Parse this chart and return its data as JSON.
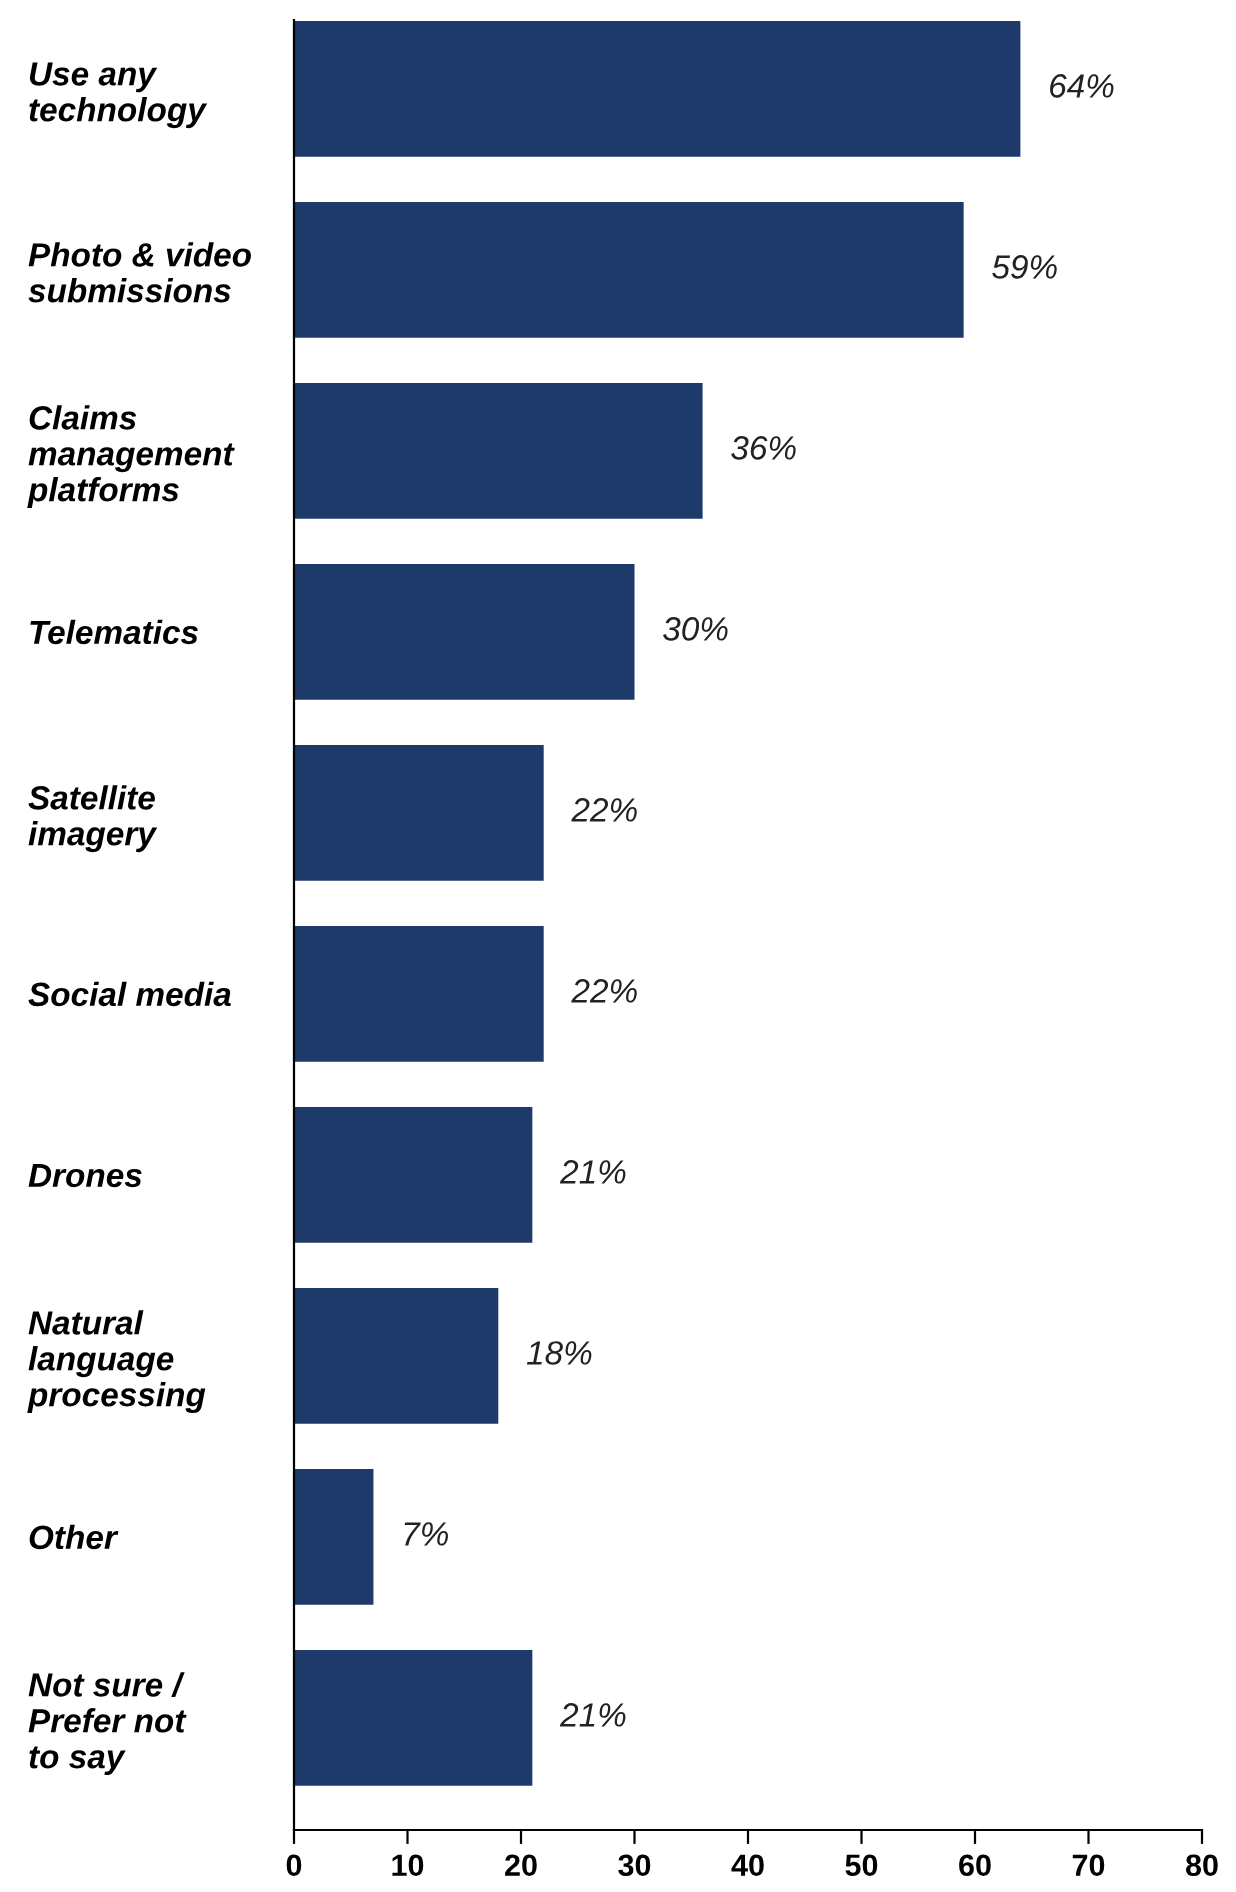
{
  "chart_data": {
    "type": "bar",
    "orientation": "horizontal",
    "categories": [
      "Use any\ntechnology",
      "Photo & video\nsubmissions",
      "Claims\nmanagement\nplatforms",
      "Telematics",
      "Satellite\nimagery",
      "Social media",
      "Drones",
      "Natural\nlanguage\nprocessing",
      "Other",
      "Not sure /\nPrefer not\nto say"
    ],
    "values": [
      64,
      59,
      36,
      30,
      22,
      22,
      21,
      18,
      7,
      21
    ],
    "value_labels": [
      "64%",
      "59%",
      "36%",
      "30%",
      "22%",
      "22%",
      "21%",
      "18%",
      "7%",
      "21%"
    ],
    "color": "#1e3a6a",
    "xlim": [
      0,
      80
    ],
    "xticks": [
      0,
      10,
      20,
      30,
      40,
      50,
      60,
      70,
      80
    ],
    "grid": false,
    "legend": false
  }
}
